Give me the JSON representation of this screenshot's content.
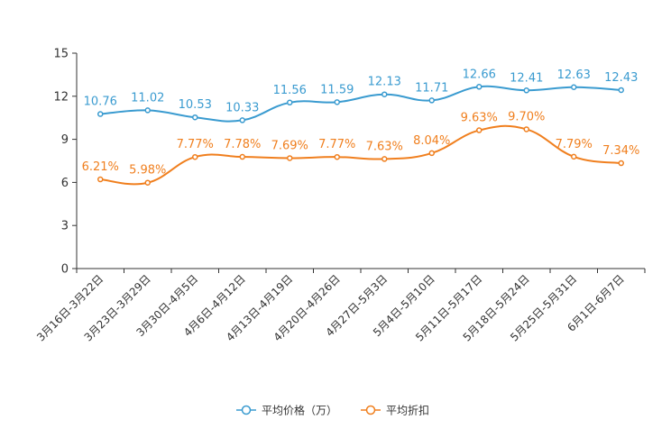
{
  "chart_data": {
    "type": "line",
    "title": "",
    "xlabel": "",
    "ylabel": "",
    "ylim": [
      0,
      15
    ],
    "yticks": [
      0,
      3,
      6,
      9,
      12,
      15
    ],
    "grid": false,
    "legend_position": "bottom-center",
    "categories": [
      "3月16日-3月22日",
      "3月23日-3月29日",
      "3月30日-4月5日",
      "4月6日-4月12日",
      "4月13日-4月19日",
      "4月20日-4月26日",
      "4月27日-5月3日",
      "5月4日-5月10日",
      "5月11日-5月17日",
      "5月18日-5月24日",
      "5月25日-5月31日",
      "6月1日-6月7日"
    ],
    "series": [
      {
        "name": "平均价格（万）",
        "color": "#3a9bd0",
        "values": [
          10.76,
          11.02,
          10.53,
          10.33,
          11.56,
          11.59,
          12.13,
          11.71,
          12.66,
          12.41,
          12.63,
          12.43
        ],
        "labels": [
          "10.76",
          "11.02",
          "10.53",
          "10.33",
          "11.56",
          "11.59",
          "12.13",
          "11.71",
          "12.66",
          "12.41",
          "12.63",
          "12.43"
        ]
      },
      {
        "name": "平均折扣",
        "color": "#f07f1e",
        "values": [
          6.21,
          5.98,
          7.77,
          7.78,
          7.69,
          7.77,
          7.63,
          8.04,
          9.63,
          9.7,
          7.79,
          7.34
        ],
        "labels": [
          "6.21%",
          "5.98%",
          "7.77%",
          "7.78%",
          "7.69%",
          "7.77%",
          "7.63%",
          "8.04%",
          "9.63%",
          "9.70%",
          "7.79%",
          "7.34%"
        ]
      }
    ]
  }
}
